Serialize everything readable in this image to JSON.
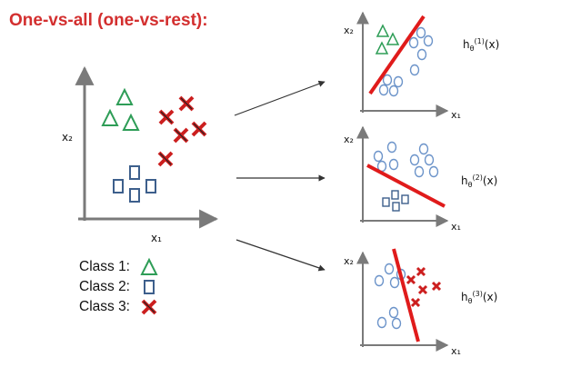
{
  "slide": {
    "title": "One-vs-all (one-vs-rest):"
  },
  "main_plot": {
    "x_label": "x₁",
    "y_label": "x₂"
  },
  "legend": [
    {
      "label": "Class 1:",
      "glyph": "triangle",
      "color": "#2e9d57"
    },
    {
      "label": "Class 2:",
      "glyph": "square",
      "color": "#3d5f8c"
    },
    {
      "label": "Class 3:",
      "glyph": "cross",
      "color": "#cc1f1f"
    }
  ],
  "subplots": [
    {
      "x_label": "x₁",
      "y_label": "x₂",
      "hypothesis": "hθ(1)(x)",
      "h_base": "h",
      "h_sub": "θ",
      "h_sup": "(1)",
      "h_arg": "(x)",
      "positive_class": "triangle"
    },
    {
      "x_label": "x₁",
      "y_label": "x₂",
      "hypothesis": "hθ(2)(x)",
      "h_base": "h",
      "h_sub": "θ",
      "h_sup": "(2)",
      "h_arg": "(x)",
      "positive_class": "square"
    },
    {
      "x_label": "x₁",
      "y_label": "x₂",
      "hypothesis": "hθ(3)(x)",
      "h_base": "h",
      "h_sub": "θ",
      "h_sup": "(3)",
      "h_arg": "(x)",
      "positive_class": "cross"
    }
  ],
  "colors": {
    "title": "#d32f2f",
    "triangle": "#2e9d57",
    "square": "#3d5f8c",
    "cross": "#cc1f1f",
    "circle": "#6b93c9",
    "boundary": "#e01b1b",
    "axis": "#7a7a7a"
  }
}
